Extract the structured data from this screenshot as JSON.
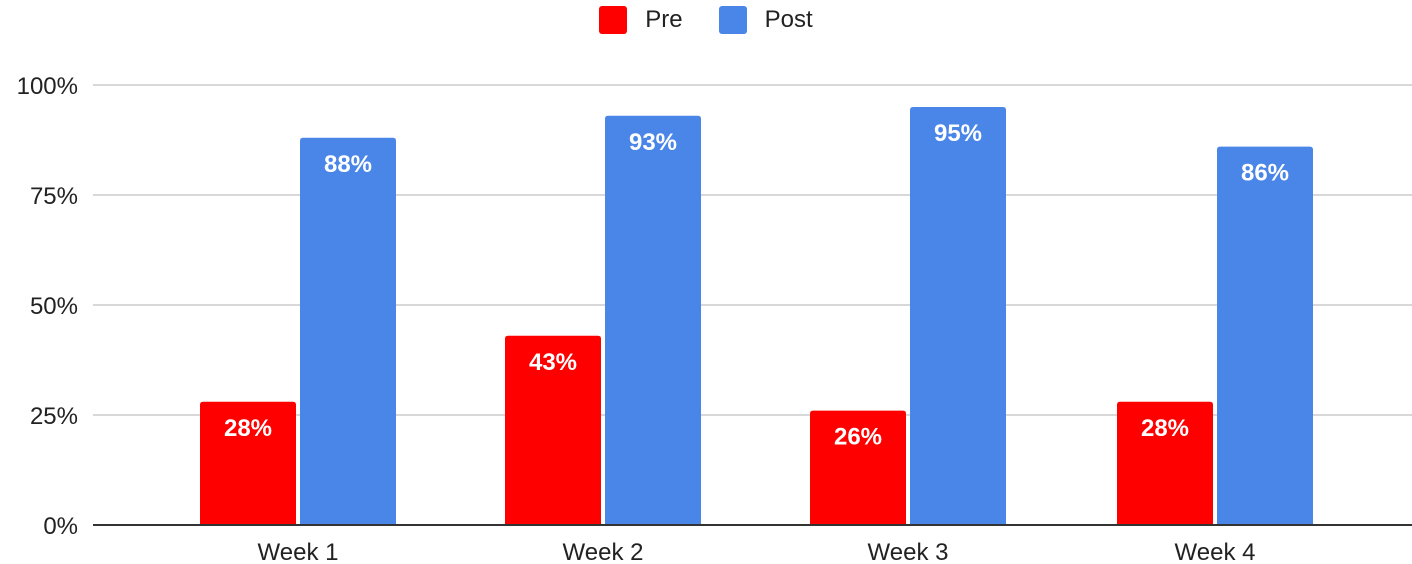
{
  "chart_data": {
    "type": "bar",
    "categories": [
      "Week 1",
      "Week 2",
      "Week 3",
      "Week 4"
    ],
    "series": [
      {
        "name": "Pre",
        "values": [
          28,
          43,
          26,
          28
        ],
        "labels": [
          "28%",
          "43%",
          "26%",
          "28%"
        ],
        "color": "#ff0000"
      },
      {
        "name": "Post",
        "values": [
          88,
          93,
          95,
          86
        ],
        "labels": [
          "88%",
          "93%",
          "95%",
          "86%"
        ],
        "color": "#4a86e8"
      }
    ],
    "y_ticks": [
      0,
      25,
      50,
      75,
      100
    ],
    "y_tick_labels": [
      "0%",
      "25%",
      "50%",
      "75%",
      "100%"
    ],
    "ylim": [
      0,
      100
    ],
    "grid": true,
    "legend_position": "top-center",
    "title": "",
    "xlabel": "",
    "ylabel": ""
  }
}
